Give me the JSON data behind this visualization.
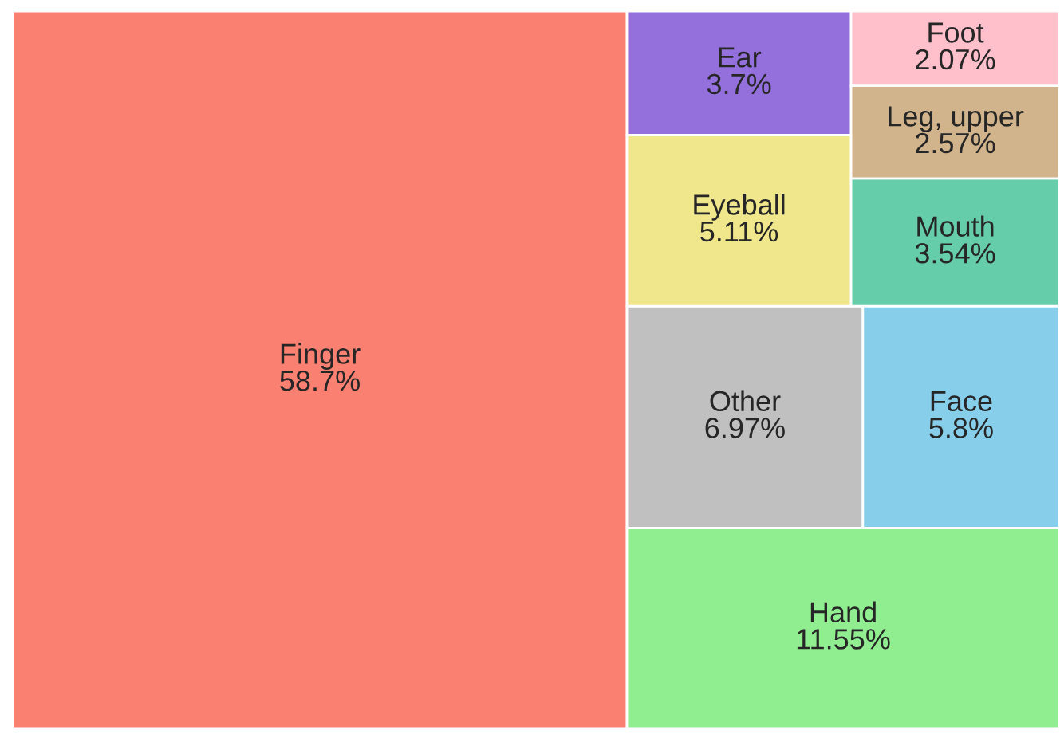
{
  "chart_data": {
    "type": "other",
    "categories": [
      "Finger",
      "Hand",
      "Other",
      "Face",
      "Eyeball",
      "Ear",
      "Mouth",
      "Leg, upper",
      "Foot"
    ],
    "values": [
      58.7,
      11.55,
      6.97,
      5.8,
      5.11,
      3.7,
      3.54,
      2.57,
      2.07
    ],
    "value_labels": [
      "58.7%",
      "11.55%",
      "6.97%",
      "5.8%",
      "5.11%",
      "3.7%",
      "3.54%",
      "2.57%",
      "2.07%"
    ],
    "colors": [
      "#fa8072",
      "#90ee90",
      "#c0c0c0",
      "#87ceeb",
      "#f0e68c",
      "#9370db",
      "#66cdaa",
      "#d2b48c",
      "#ffc0cb"
    ]
  }
}
